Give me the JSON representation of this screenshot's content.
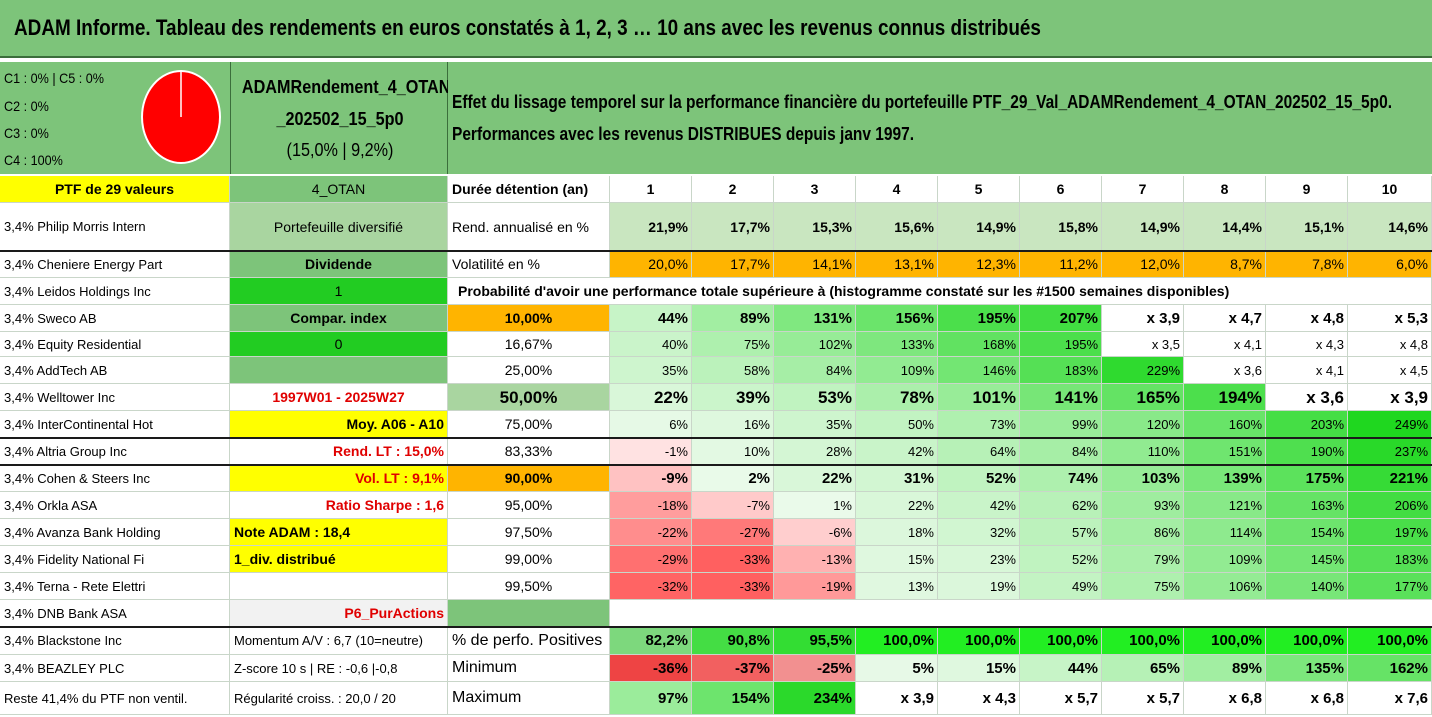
{
  "title": "ADAM Informe. Tableau des rendements en euros constatés à 1, 2, 3 … 10 ans avec les revenus connus distribués",
  "classes": [
    "C1 : 0% | C5 : 0%",
    "C2 : 0%",
    "C3 : 0%",
    "C4 : 100%"
  ],
  "pie_color": "#ff0000",
  "portfolio_name": [
    "ADAMRendement_4_OTAN",
    "_202502_15_5p0",
    "(15,0% | 9,2%)"
  ],
  "effet_text": [
    "Effet du lissage temporel sur la performance financière du portefeuille PTF_29_Val_ADAMRendement_4_OTAN_202502_15_5p0.",
    "Performances avec les revenus DISTRIBUES depuis janv 1997."
  ],
  "header": {
    "ptf": "PTF de 29 valeurs",
    "code": "4_OTAN",
    "duree": "Durée détention (an)",
    "years": [
      "1",
      "2",
      "3",
      "4",
      "5",
      "6",
      "7",
      "8",
      "9",
      "10"
    ]
  },
  "holdings": [
    "3,4% Philip Morris Intern",
    "3,4% Cheniere Energy Part",
    "3,4% Leidos Holdings Inc",
    "3,4% Sweco AB",
    "3,4% Equity Residential",
    "3,4% AddTech AB",
    "3,4% Welltower Inc",
    "3,4% InterContinental Hot",
    "3,4% Altria Group Inc",
    "3,4% Cohen & Steers Inc",
    "3,4% Orkla ASA",
    "3,4% Avanza Bank Holding",
    "3,4% Fidelity National Fi",
    "3,4% Terna - Rete Elettri",
    "3,4% DNB Bank ASA",
    "3,4% Blackstone Inc",
    "3,4% BEAZLEY PLC",
    "Reste 41,4% du PTF non ventil."
  ],
  "info_col": [
    "Portefeuille diversifié",
    "Dividende",
    "1",
    "Compar. index",
    "0",
    "",
    "1997W01 - 2025W27",
    "Moy. A06 - A10",
    "Rend. LT : 15,0%",
    "Vol. LT : 9,1%",
    "Ratio Sharpe : 1,6",
    "Note ADAM : 18,4",
    "1_div. distribué",
    "",
    "P6_PurActions",
    "Momentum A/V : 6,7 (10=neutre)",
    "Z-score 10 s | RE : -0,6 |-0,8",
    "Régularité croiss. : 20,0 / 20"
  ],
  "rend": {
    "label": "Rend. annualisé en %",
    "values": [
      "21,9%",
      "17,7%",
      "15,3%",
      "15,6%",
      "14,9%",
      "15,8%",
      "14,9%",
      "14,4%",
      "15,1%",
      "14,6%"
    ]
  },
  "vol": {
    "label": "Volatilité en %",
    "values": [
      "20,0%",
      "17,7%",
      "14,1%",
      "13,1%",
      "12,3%",
      "11,2%",
      "12,0%",
      "8,7%",
      "7,8%",
      "6,0%"
    ]
  },
  "proba_title": "Probabilité d'avoir une performance totale supérieure à (histogramme constaté sur les #1500 semaines disponibles)",
  "proba_rows": [
    {
      "p": "10,00%",
      "values": [
        "44%",
        "89%",
        "131%",
        "156%",
        "195%",
        "207%",
        "x 3,9",
        "x 4,7",
        "x 4,8",
        "x 5,3"
      ]
    },
    {
      "p": "16,67%",
      "values": [
        "40%",
        "75%",
        "102%",
        "133%",
        "168%",
        "195%",
        "x 3,5",
        "x 4,1",
        "x 4,3",
        "x 4,8"
      ]
    },
    {
      "p": "25,00%",
      "values": [
        "35%",
        "58%",
        "84%",
        "109%",
        "146%",
        "183%",
        "229%",
        "x 3,6",
        "x 4,1",
        "x 4,5"
      ]
    },
    {
      "p": "50,00%",
      "values": [
        "22%",
        "39%",
        "53%",
        "78%",
        "101%",
        "141%",
        "165%",
        "194%",
        "x 3,6",
        "x 3,9"
      ]
    },
    {
      "p": "75,00%",
      "values": [
        "6%",
        "16%",
        "35%",
        "50%",
        "73%",
        "99%",
        "120%",
        "160%",
        "203%",
        "249%"
      ]
    },
    {
      "p": "83,33%",
      "values": [
        "-1%",
        "10%",
        "28%",
        "42%",
        "64%",
        "84%",
        "110%",
        "151%",
        "190%",
        "237%"
      ]
    },
    {
      "p": "90,00%",
      "values": [
        "-9%",
        "2%",
        "22%",
        "31%",
        "52%",
        "74%",
        "103%",
        "139%",
        "175%",
        "221%"
      ]
    },
    {
      "p": "95,00%",
      "values": [
        "-18%",
        "-7%",
        "1%",
        "22%",
        "42%",
        "62%",
        "93%",
        "121%",
        "163%",
        "206%"
      ]
    },
    {
      "p": "97,50%",
      "values": [
        "-22%",
        "-27%",
        "-6%",
        "18%",
        "32%",
        "57%",
        "86%",
        "114%",
        "154%",
        "197%"
      ]
    },
    {
      "p": "99,00%",
      "values": [
        "-29%",
        "-33%",
        "-13%",
        "15%",
        "23%",
        "52%",
        "79%",
        "109%",
        "145%",
        "183%"
      ]
    },
    {
      "p": "99,50%",
      "values": [
        "-32%",
        "-33%",
        "-19%",
        "13%",
        "19%",
        "49%",
        "75%",
        "106%",
        "140%",
        "177%"
      ]
    }
  ],
  "pos": {
    "label": "% de perfo. Positives",
    "values": [
      "82,2%",
      "90,8%",
      "95,5%",
      "100,0%",
      "100,0%",
      "100,0%",
      "100,0%",
      "100,0%",
      "100,0%",
      "100,0%"
    ]
  },
  "min": {
    "label": "Minimum",
    "values": [
      "-36%",
      "-37%",
      "-25%",
      "5%",
      "15%",
      "44%",
      "65%",
      "89%",
      "135%",
      "162%"
    ]
  },
  "max": {
    "label": "Maximum",
    "values": [
      "97%",
      "154%",
      "234%",
      "x 3,9",
      "x 4,3",
      "x 5,7",
      "x 5,7",
      "x 6,8",
      "x 6,8",
      "x 7,6"
    ]
  },
  "colors": {
    "banner": "#7dc47a",
    "yellow": "#ffff00",
    "orange": "#ffb400",
    "midgreen": "#7dc47a",
    "brightgreen": "#22cc22",
    "accent_red": "#e00000"
  }
}
